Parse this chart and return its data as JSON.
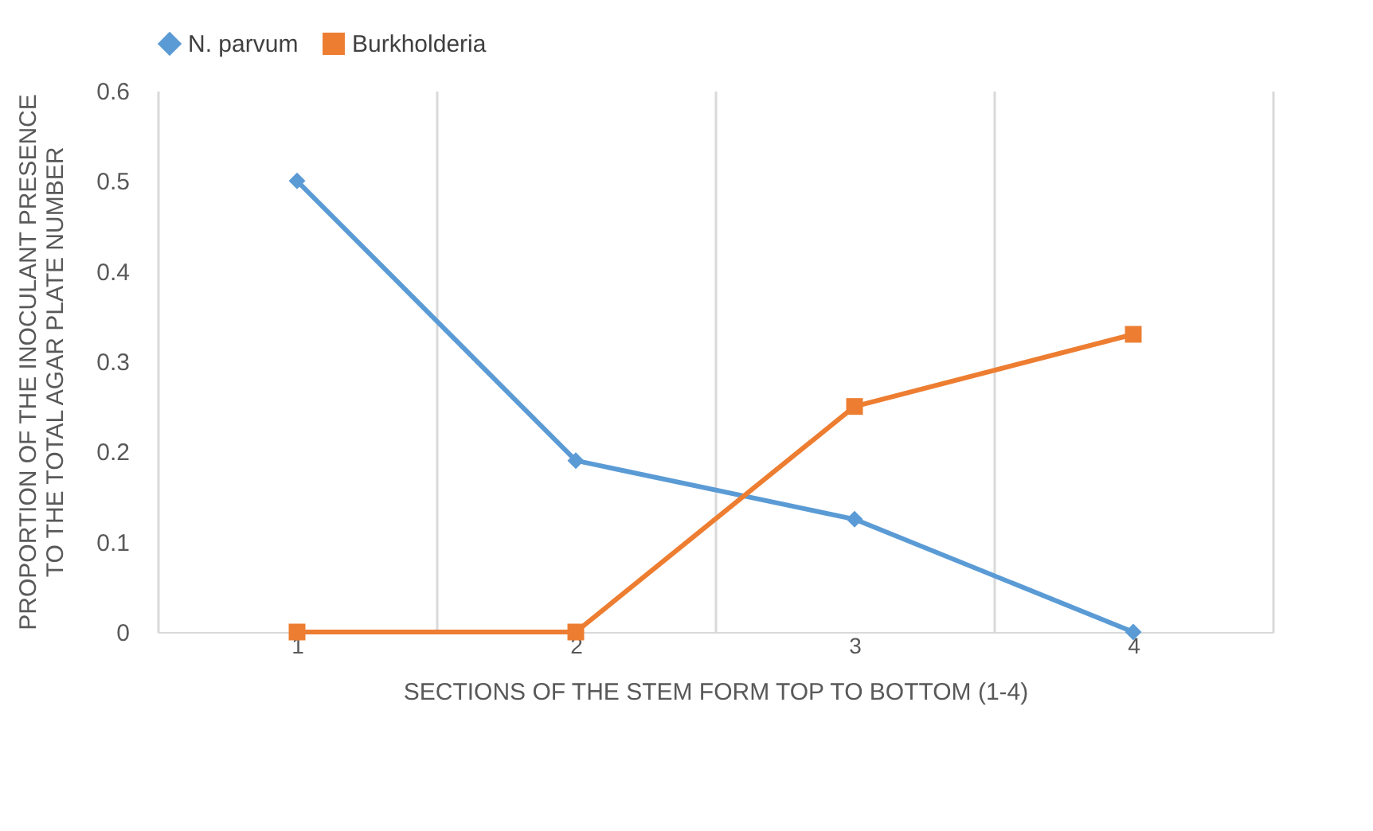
{
  "chart_data": {
    "type": "line",
    "xlabel": "SECTIONS OF THE STEM FORM TOP TO BOTTOM (1-4)",
    "ylabel": "PROPORTION OF THE INOCULANT PRESENCE\nTO THE TOTAL AGAR PLATE NUMBER",
    "categories": [
      "1",
      "2",
      "3",
      "4"
    ],
    "series": [
      {
        "name": "N. parvum",
        "color": "#5b9bd5",
        "marker": "diamond",
        "values": [
          0.5,
          0.19,
          0.125,
          0
        ]
      },
      {
        "name": "Burkholderia",
        "color": "#ed7d31",
        "marker": "square",
        "values": [
          0,
          0,
          0.25,
          0.33
        ]
      }
    ],
    "ylim": [
      0,
      0.6
    ],
    "yticks": [
      0,
      0.1,
      0.2,
      0.3,
      0.4,
      0.5,
      0.6
    ],
    "grid": "x",
    "legend": "top",
    "line_style": "solid"
  }
}
